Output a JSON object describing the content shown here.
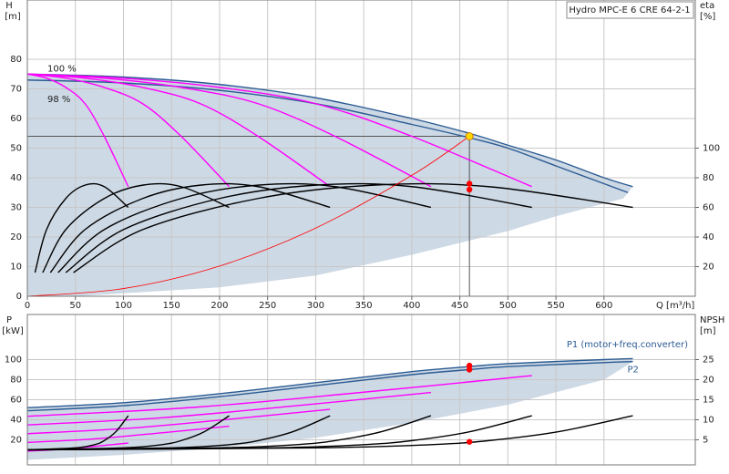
{
  "chart_data": [
    {
      "type": "line",
      "title": "Hydro MPC-E 6 CRE 64-2-1",
      "ylabel": "H",
      "yunit": "[m]",
      "y2label": "eta",
      "y2unit": "[%]",
      "xlabel": "Q [m³/h]",
      "xlim": [
        0,
        695
      ],
      "xticks": [
        0,
        50,
        100,
        150,
        200,
        250,
        300,
        350,
        400,
        450,
        500,
        550,
        600
      ],
      "ylim": [
        0,
        100
      ],
      "yticks": [
        0,
        10,
        20,
        30,
        40,
        50,
        60,
        70,
        80
      ],
      "y2lim": [
        0,
        200
      ],
      "y2ticks": [
        20,
        40,
        60,
        80,
        100
      ],
      "grid": true,
      "region": {
        "color": "#cdd9e5",
        "x": [
          0,
          100,
          200,
          300,
          400,
          460,
          500,
          550,
          600,
          630,
          620,
          550,
          500,
          400,
          300,
          200,
          150,
          100,
          50,
          0
        ],
        "values": [
          75,
          74,
          71.5,
          67,
          60,
          55,
          51,
          46,
          40,
          37,
          33,
          27,
          22,
          14,
          7,
          3,
          2,
          1,
          0,
          0
        ]
      },
      "series": [
        {
          "name": "100 %",
          "color": "#2b5b93",
          "x": [
            0,
            100,
            200,
            300,
            400,
            460,
            500,
            550,
            600,
            630
          ],
          "values": [
            75,
            74,
            71.5,
            67,
            60,
            55,
            51,
            46,
            40,
            37
          ]
        },
        {
          "name": "98 %",
          "color": "#2b5b93",
          "x": [
            0,
            100,
            200,
            300,
            400,
            460,
            500,
            550,
            600,
            625
          ],
          "values": [
            73,
            72,
            69.5,
            65,
            58,
            53.5,
            50,
            44,
            38,
            35
          ]
        },
        {
          "color": "#ff00ff",
          "x": [
            0,
            20,
            40,
            60,
            80,
            105
          ],
          "values": [
            75,
            73.6,
            70.5,
            65,
            54,
            37
          ]
        },
        {
          "color": "#ff00ff",
          "x": [
            0,
            40,
            80,
            120,
            160,
            210
          ],
          "values": [
            75,
            73.6,
            70.5,
            65,
            54,
            37
          ]
        },
        {
          "color": "#ff00ff",
          "x": [
            0,
            60,
            120,
            180,
            240,
            315
          ],
          "values": [
            75,
            73.6,
            70.5,
            65,
            54,
            37
          ]
        },
        {
          "color": "#ff00ff",
          "x": [
            0,
            80,
            160,
            240,
            320,
            420
          ],
          "values": [
            75,
            73.6,
            70.5,
            65,
            54,
            37
          ]
        },
        {
          "color": "#ff00ff",
          "x": [
            0,
            100,
            200,
            300,
            400,
            525
          ],
          "values": [
            75,
            73.6,
            70.5,
            65,
            54,
            37
          ]
        },
        {
          "color": "#000000",
          "axis": "y2",
          "x": [
            8,
            20,
            40,
            60,
            80,
            105
          ],
          "values": [
            16,
            45,
            66,
            75,
            74,
            60
          ]
        },
        {
          "color": "#000000",
          "axis": "y2",
          "x": [
            16,
            40,
            80,
            120,
            160,
            210
          ],
          "values": [
            16,
            45,
            66,
            75,
            74,
            60
          ]
        },
        {
          "color": "#000000",
          "axis": "y2",
          "x": [
            24,
            60,
            120,
            180,
            240,
            315
          ],
          "values": [
            16,
            45,
            66,
            75,
            74,
            60
          ]
        },
        {
          "color": "#000000",
          "axis": "y2",
          "x": [
            32,
            80,
            160,
            240,
            320,
            420
          ],
          "values": [
            16,
            45,
            66,
            75,
            74,
            60
          ]
        },
        {
          "color": "#000000",
          "axis": "y2",
          "x": [
            40,
            100,
            200,
            300,
            400,
            525
          ],
          "values": [
            16,
            45,
            66,
            75,
            74,
            60
          ]
        },
        {
          "color": "#000000",
          "axis": "y2",
          "x": [
            48,
            120,
            240,
            360,
            480,
            630
          ],
          "values": [
            16,
            45,
            66,
            75,
            74,
            60
          ]
        },
        {
          "color": "#ff0000",
          "x": [
            0,
            100,
            200,
            300,
            400,
            460
          ],
          "values": [
            0,
            2.6,
            10.2,
            23,
            40.8,
            54
          ]
        }
      ],
      "duty_point": {
        "x": 460,
        "h": 54,
        "color": "#ffd700"
      },
      "markers": {
        "color": "#ff0000",
        "x": [
          460,
          460
        ],
        "values": [
          76,
          72
        ],
        "axis": "y2"
      }
    },
    {
      "type": "line",
      "ylabel": "P",
      "yunit": "[kW]",
      "y2label": "NPSH",
      "y2unit": "[m]",
      "ylim": [
        -5,
        145
      ],
      "yticks": [
        20,
        40,
        60,
        80,
        100
      ],
      "y2lim": [
        -1.25,
        36.25
      ],
      "y2ticks": [
        5,
        10,
        15,
        20,
        25
      ],
      "grid": true,
      "region": {
        "color": "#cdd9e5",
        "x": [
          0,
          100,
          200,
          300,
          400,
          460,
          500,
          600,
          630,
          630,
          600,
          500,
          400,
          300,
          200,
          100,
          0
        ],
        "values": [
          52,
          57,
          66,
          77,
          88,
          93,
          96,
          100,
          101,
          98,
          80,
          55,
          37,
          22,
          12,
          5,
          0
        ]
      },
      "series": [
        {
          "name": "P1 (motor+freq.converter)",
          "color": "#2b5b93",
          "x": [
            0,
            100,
            200,
            300,
            400,
            460,
            500,
            600,
            630
          ],
          "values": [
            52,
            57,
            66,
            77,
            88,
            93,
            96,
            100,
            101
          ]
        },
        {
          "name": "P2",
          "color": "#2b5b93",
          "x": [
            0,
            100,
            200,
            300,
            400,
            460,
            500,
            600,
            630
          ],
          "values": [
            49,
            54,
            63,
            74,
            85,
            90,
            93,
            97,
            98
          ]
        },
        {
          "color": "#ff00ff",
          "x": [
            0,
            35,
            70,
            105
          ],
          "values": [
            8.7,
            10.5,
            13.5,
            16.8
          ]
        },
        {
          "color": "#ff00ff",
          "x": [
            0,
            70,
            140,
            210
          ],
          "values": [
            17.4,
            21,
            27,
            33.6
          ]
        },
        {
          "color": "#ff00ff",
          "x": [
            0,
            105,
            210,
            315
          ],
          "values": [
            26.1,
            31.5,
            40.5,
            50.4
          ]
        },
        {
          "color": "#ff00ff",
          "x": [
            0,
            140,
            280,
            420
          ],
          "values": [
            34.8,
            42,
            54,
            67.2
          ]
        },
        {
          "color": "#ff00ff",
          "x": [
            0,
            175,
            350,
            525
          ],
          "values": [
            43.5,
            52.5,
            67.5,
            84
          ]
        },
        {
          "color": "#000000",
          "axis": "y2",
          "x": [
            0,
            50,
            70,
            80,
            92,
            105
          ],
          "values": [
            2.5,
            3,
            3.8,
            4.8,
            7,
            11
          ]
        },
        {
          "color": "#000000",
          "axis": "y2",
          "x": [
            0,
            100,
            140,
            160,
            184,
            210
          ],
          "values": [
            2.5,
            3,
            3.8,
            4.8,
            7,
            11
          ]
        },
        {
          "color": "#000000",
          "axis": "y2",
          "x": [
            0,
            150,
            210,
            240,
            276,
            315
          ],
          "values": [
            2.5,
            3,
            3.8,
            4.8,
            7,
            11
          ]
        },
        {
          "color": "#000000",
          "axis": "y2",
          "x": [
            0,
            200,
            280,
            320,
            368,
            420
          ],
          "values": [
            2.5,
            3,
            3.8,
            4.8,
            7,
            11
          ]
        },
        {
          "color": "#000000",
          "axis": "y2",
          "x": [
            0,
            250,
            350,
            400,
            460,
            525
          ],
          "values": [
            2.5,
            3,
            3.8,
            4.8,
            7,
            11
          ]
        },
        {
          "color": "#000000",
          "axis": "y2",
          "x": [
            0,
            300,
            420,
            480,
            552,
            630
          ],
          "values": [
            2.5,
            3,
            3.8,
            4.8,
            7,
            11
          ]
        }
      ],
      "markers": {
        "color": "#ff0000",
        "x": [
          460,
          460
        ],
        "values": [
          94,
          90
        ]
      },
      "markers2": {
        "color": "#ff0000",
        "x": [
          460
        ],
        "values": [
          4.5
        ],
        "axis": "y2"
      }
    }
  ]
}
